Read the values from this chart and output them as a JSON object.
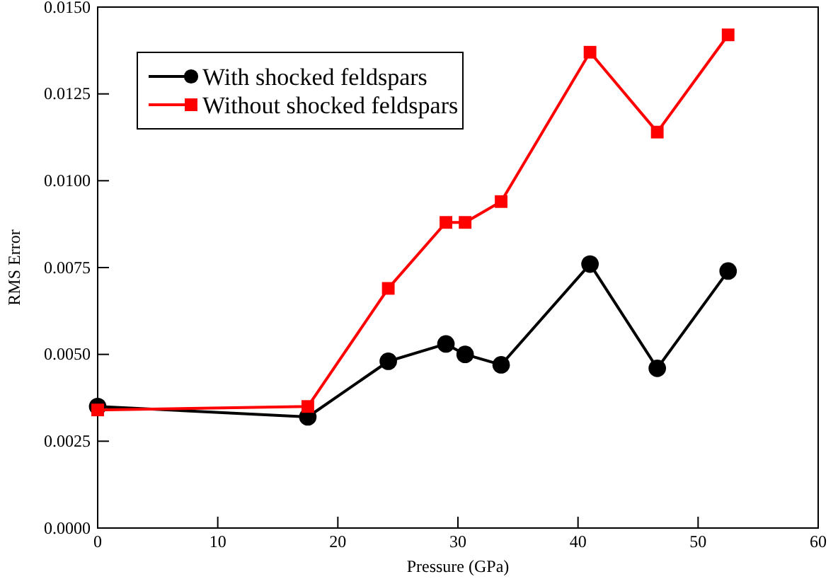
{
  "chart_data": {
    "type": "line",
    "xlabel": "Pressure (GPa)",
    "ylabel": "RMS Error",
    "x": [
      0,
      17.5,
      24.2,
      29,
      30.6,
      33.6,
      41,
      46.6,
      52.5
    ],
    "series": [
      {
        "name": "With shocked feldspars",
        "color": "#000000",
        "marker": "circle",
        "values": [
          0.0035,
          0.0032,
          0.0048,
          0.0053,
          0.005,
          0.0047,
          0.0076,
          0.0046,
          0.0074
        ]
      },
      {
        "name": "Without shocked feldspars",
        "color": "#ff0000",
        "marker": "square",
        "values": [
          0.0034,
          0.0035,
          0.0069,
          0.0088,
          0.0088,
          0.0094,
          0.0137,
          0.0114,
          0.0142
        ]
      }
    ],
    "xlim": [
      0,
      60
    ],
    "xticks": [
      0,
      10,
      20,
      30,
      40,
      50,
      60
    ],
    "ylim": [
      0,
      0.015
    ],
    "yticks": [
      {
        "value": 0,
        "label": "0.0000"
      },
      {
        "value": 0.0025,
        "label": "0.0025"
      },
      {
        "value": 0.005,
        "label": "0.0050"
      },
      {
        "value": 0.0075,
        "label": "0.0075"
      },
      {
        "value": 0.01,
        "label": "0.0100"
      },
      {
        "value": 0.0125,
        "label": "0.0125"
      },
      {
        "value": 0.015,
        "label": "0.0150"
      }
    ],
    "grid": false,
    "legend": "top left",
    "line_style": "solid"
  }
}
